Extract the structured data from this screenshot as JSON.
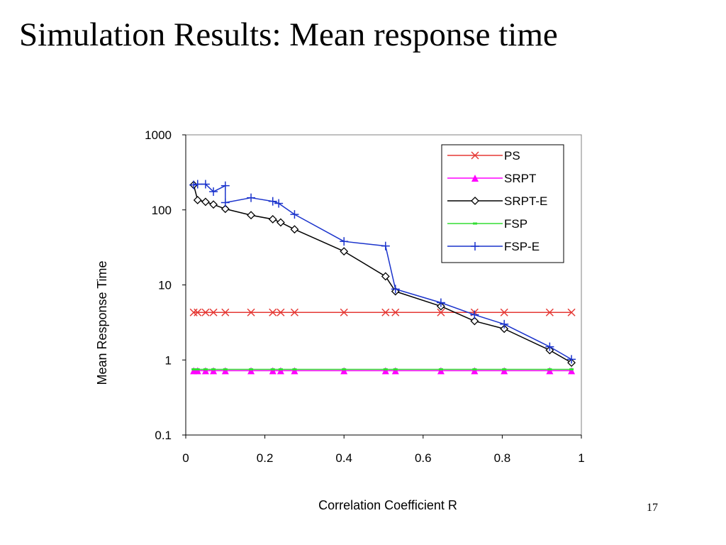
{
  "slide": {
    "title": "Simulation Results: Mean response time",
    "page_number": "17"
  },
  "chart_data": {
    "type": "line",
    "title": "",
    "xlabel": "Correlation Coefficient R",
    "ylabel": "Mean Response Time",
    "xlim": [
      0,
      1
    ],
    "ylim": [
      0.1,
      1000
    ],
    "y_scale": "log",
    "x_ticks": [
      "0",
      "0.2",
      "0.4",
      "0.6",
      "0.8",
      "1"
    ],
    "y_ticks": [
      "0.1",
      "1",
      "10",
      "100",
      "1000"
    ],
    "grid": false,
    "legend_position": "top-right",
    "series": [
      {
        "name": "PS",
        "color": "#e53935",
        "marker": "x",
        "x": [
          0.02,
          0.03,
          0.05,
          0.07,
          0.1,
          0.165,
          0.22,
          0.24,
          0.275,
          0.4,
          0.505,
          0.53,
          0.645,
          0.73,
          0.805,
          0.92,
          0.975
        ],
        "y": [
          4.3,
          4.3,
          4.3,
          4.3,
          4.3,
          4.3,
          4.3,
          4.3,
          4.3,
          4.3,
          4.3,
          4.3,
          4.3,
          4.3,
          4.3,
          4.3,
          4.3
        ]
      },
      {
        "name": "SRPT",
        "color": "#ff00ff",
        "marker": "triangle",
        "x": [
          0.02,
          0.03,
          0.05,
          0.07,
          0.1,
          0.165,
          0.22,
          0.24,
          0.275,
          0.4,
          0.505,
          0.53,
          0.645,
          0.73,
          0.805,
          0.92,
          0.975
        ],
        "y": [
          0.72,
          0.72,
          0.72,
          0.72,
          0.72,
          0.72,
          0.72,
          0.72,
          0.72,
          0.72,
          0.72,
          0.72,
          0.72,
          0.72,
          0.72,
          0.72,
          0.72
        ]
      },
      {
        "name": "SRPT-E",
        "color": "#000000",
        "marker": "diamond",
        "x": [
          0.02,
          0.03,
          0.05,
          0.07,
          0.1,
          0.165,
          0.22,
          0.24,
          0.275,
          0.4,
          0.505,
          0.53,
          0.645,
          0.73,
          0.805,
          0.92,
          0.975
        ],
        "y": [
          215,
          135,
          128,
          118,
          103,
          85,
          75,
          68,
          55,
          28,
          13,
          8.2,
          5.2,
          3.3,
          2.6,
          1.35,
          0.92
        ]
      },
      {
        "name": "FSP",
        "color": "#33dd33",
        "marker": "dash",
        "x": [
          0.02,
          0.03,
          0.05,
          0.07,
          0.1,
          0.165,
          0.22,
          0.24,
          0.275,
          0.4,
          0.505,
          0.53,
          0.645,
          0.73,
          0.805,
          0.92,
          0.975
        ],
        "y": [
          0.75,
          0.75,
          0.75,
          0.75,
          0.75,
          0.75,
          0.75,
          0.75,
          0.75,
          0.75,
          0.75,
          0.75,
          0.75,
          0.75,
          0.75,
          0.75,
          0.75
        ]
      },
      {
        "name": "FSP-E",
        "color": "#1a33cc",
        "marker": "plus",
        "x": [
          0.02,
          0.03,
          0.05,
          0.07,
          0.1,
          0.1,
          0.165,
          0.22,
          0.235,
          0.275,
          0.4,
          0.505,
          0.53,
          0.645,
          0.73,
          0.805,
          0.92,
          0.975
        ],
        "y": [
          215,
          220,
          220,
          175,
          210,
          125,
          145,
          130,
          122,
          87,
          38,
          33,
          8.8,
          5.8,
          4.0,
          3.0,
          1.5,
          1.02
        ]
      }
    ]
  }
}
